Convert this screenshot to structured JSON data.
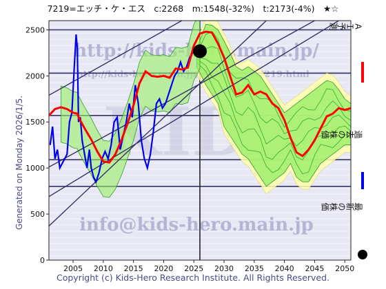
{
  "header": {
    "title": "7219=エッチ・ケ・エス　c:2268　m:1548(-32%)　t:2173(-4%)　★☆"
  },
  "side_note": "Generated on Monday 2026/1/5.",
  "footer": "Copyright (c) Kids-Hero Research Institute. All Rights Reserved.",
  "watermarks": {
    "top_url": "http://kids-hero.main.jp/",
    "sub_url": "http://kids-hero.main.jp/stocks/code7219.html",
    "email": "info@kids-hero.main.jp",
    "center": "KIDS"
  },
  "legend": [
    {
      "label": "ＡＩ予測",
      "color": "#ff0000",
      "kind": "line"
    },
    {
      "label": "過去の株価",
      "color": "#0000ee",
      "kind": "line"
    },
    {
      "label": "最新の株価",
      "color": "#000000",
      "kind": "dot"
    }
  ],
  "colors": {
    "prediction": "#ff0000",
    "history": "#0000ee",
    "band_fill": "#99ee66",
    "band_outer": "#ffffaa",
    "guide_line": "#333366",
    "background": "#e8e8f4"
  },
  "chart_data": {
    "type": "line",
    "xlim": [
      2001,
      2051
    ],
    "ylim": [
      0,
      2600
    ],
    "x_ticks": [
      2005,
      2010,
      2015,
      2020,
      2025,
      2030,
      2035,
      2040,
      2045,
      2050
    ],
    "y_ticks": [
      0,
      500,
      1000,
      1500,
      2000,
      2500
    ],
    "horizontal_lines": [
      2500,
      2030,
      1570,
      1090,
      800
    ],
    "vertical_line": 2026,
    "trend_lines": [
      {
        "x": [
          2001,
          2037
        ],
        "y": [
          370,
          2600
        ]
      },
      {
        "x": [
          2001,
          2049
        ],
        "y": [
          690,
          2600
        ]
      },
      {
        "x": [
          2001,
          2045
        ],
        "y": [
          1010,
          2600
        ]
      },
      {
        "x": [
          2001,
          2023
        ],
        "y": [
          1790,
          2600
        ]
      }
    ],
    "latest": {
      "x": 2026,
      "y": 2268
    },
    "series": [
      {
        "name": "ＡＩ予測",
        "x": [
          2001,
          2002,
          2003,
          2004,
          2005,
          2005.7,
          2006,
          2007,
          2008,
          2009,
          2010,
          2011,
          2012,
          2013,
          2014,
          2015,
          2016,
          2017,
          2018,
          2019,
          2020,
          2021,
          2022,
          2023,
          2024,
          2025,
          2026,
          2027,
          2028,
          2029,
          2030,
          2031,
          2032,
          2033,
          2034,
          2035,
          2036,
          2037,
          2038,
          2039,
          2040,
          2041,
          2042,
          2043,
          2044,
          2045,
          2046,
          2047,
          2048,
          2049,
          2050,
          2051
        ],
        "y": [
          1570,
          1640,
          1660,
          1640,
          1600,
          1590,
          1540,
          1420,
          1310,
          1180,
          1070,
          1060,
          1150,
          1300,
          1480,
          1680,
          1920,
          2050,
          2000,
          1990,
          2000,
          1980,
          2080,
          2070,
          2090,
          2330,
          2460,
          2480,
          2470,
          2350,
          2200,
          2000,
          1800,
          1820,
          1900,
          1800,
          1830,
          1800,
          1700,
          1650,
          1520,
          1330,
          1170,
          1130,
          1200,
          1300,
          1430,
          1560,
          1590,
          1650,
          1630,
          1650
        ]
      },
      {
        "name": "過去の株価",
        "x": [
          2001.2,
          2001.6,
          2002,
          2002.4,
          2002.8,
          2003.2,
          2003.6,
          2004,
          2004.4,
          2004.8,
          2005.2,
          2005.5,
          2005.7,
          2005.9,
          2006.2,
          2006.5,
          2006.9,
          2007.3,
          2007.7,
          2008,
          2008.4,
          2008.8,
          2009.3,
          2009.8,
          2010.3,
          2010.8,
          2011.3,
          2011.8,
          2012.3,
          2012.8,
          2013.3,
          2013.8,
          2014.3,
          2014.8,
          2015.3,
          2015.8,
          2016.3,
          2016.8,
          2017.3,
          2017.8,
          2018.3,
          2018.8,
          2019.3,
          2019.8,
          2020.3,
          2020.8,
          2021.3,
          2021.8,
          2022.3,
          2022.8,
          2023.3,
          2023.8,
          2024.3,
          2024.8,
          2025.3,
          2025.8
        ],
        "y": [
          1250,
          1450,
          1100,
          1200,
          1000,
          1050,
          1100,
          1150,
          1500,
          1600,
          2100,
          2450,
          2300,
          1500,
          1550,
          1300,
          1150,
          1000,
          1200,
          1000,
          900,
          850,
          950,
          1100,
          1180,
          1100,
          1250,
          1500,
          1550,
          1200,
          1350,
          1500,
          1700,
          1550,
          1900,
          1700,
          1300,
          1100,
          1000,
          1150,
          1400,
          1700,
          1750,
          1650,
          1700,
          1800,
          1900,
          2000,
          2050,
          2150,
          2050,
          2100,
          2200,
          2250,
          2300,
          2268
        ]
      }
    ],
    "band": {
      "x": [
        2025.5,
        2027,
        2028,
        2029,
        2030,
        2031,
        2032,
        2033,
        2034,
        2035,
        2036,
        2037,
        2038,
        2039,
        2040,
        2041,
        2042,
        2043,
        2044,
        2045,
        2046,
        2047,
        2048,
        2049,
        2050,
        2051
      ],
      "upper": [
        2300,
        2560,
        2550,
        2500,
        2380,
        2250,
        2100,
        2060,
        2100,
        2050,
        2000,
        1900,
        1800,
        1700,
        1600,
        1650,
        1700,
        1750,
        1800,
        1850,
        1900,
        1950,
        1930,
        1850,
        1750,
        1700
      ],
      "lower": [
        2100,
        1900,
        1800,
        1700,
        1450,
        1350,
        1250,
        1150,
        1100,
        1000,
        900,
        800,
        850,
        900,
        950,
        1050,
        900,
        850,
        850,
        950,
        1050,
        1100,
        1150,
        1200,
        1250,
        1250
      ]
    }
  }
}
